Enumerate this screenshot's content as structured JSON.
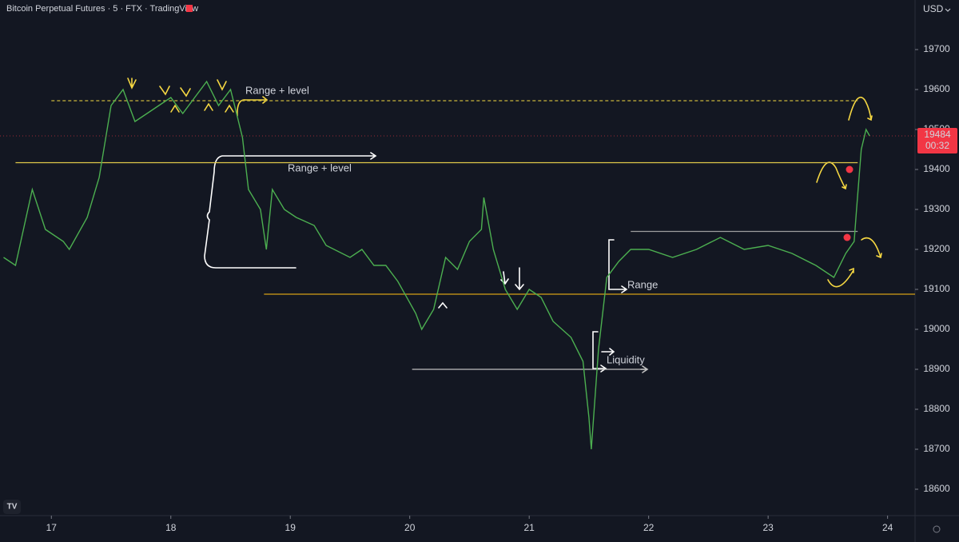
{
  "chart_data": {
    "type": "line",
    "title": "Bitcoin Perpetual Futures · 5 · FTX · TradingView",
    "currency": "USD",
    "color": "#4caf50",
    "x": [
      16.6,
      16.7,
      16.84,
      16.95,
      17.1,
      17.15,
      17.3,
      17.4,
      17.5,
      17.6,
      17.7,
      17.8,
      17.9,
      18.0,
      18.1,
      18.2,
      18.3,
      18.4,
      18.5,
      18.55,
      18.6,
      18.65,
      18.75,
      18.8,
      18.85,
      18.95,
      19.05,
      19.2,
      19.3,
      19.5,
      19.6,
      19.7,
      19.8,
      19.9,
      20.05,
      20.1,
      20.2,
      20.3,
      20.4,
      20.5,
      20.6,
      20.62,
      20.7,
      20.8,
      20.9,
      21.0,
      21.1,
      21.2,
      21.35,
      21.45,
      21.5,
      21.52,
      21.58,
      21.65,
      21.75,
      21.85,
      22.0,
      22.2,
      22.4,
      22.6,
      22.8,
      23.0,
      23.2,
      23.4,
      23.55,
      23.65,
      23.72,
      23.74,
      23.78,
      23.82,
      23.85
    ],
    "values": [
      19180,
      19160,
      19350,
      19250,
      19220,
      19200,
      19280,
      19380,
      19560,
      19600,
      19520,
      19540,
      19560,
      19580,
      19540,
      19580,
      19620,
      19560,
      19600,
      19540,
      19480,
      19350,
      19300,
      19200,
      19350,
      19300,
      19280,
      19260,
      19210,
      19180,
      19200,
      19160,
      19160,
      19120,
      19040,
      19000,
      19050,
      19180,
      19150,
      19220,
      19250,
      19330,
      19200,
      19100,
      19050,
      19100,
      19080,
      19020,
      18980,
      18920,
      18780,
      18700,
      18950,
      19130,
      19170,
      19200,
      19200,
      19180,
      19200,
      19230,
      19200,
      19210,
      19190,
      19160,
      19130,
      19190,
      19220,
      19300,
      19450,
      19500,
      19484
    ],
    "xlim": [
      16.57,
      24.23
    ],
    "ylim": [
      18534,
      19824
    ],
    "xticks": [
      17,
      18,
      19,
      20,
      21,
      22,
      23,
      24
    ],
    "yticks": [
      18600,
      18700,
      18800,
      18900,
      19000,
      19100,
      19200,
      19300,
      19400,
      19500,
      19600,
      19700
    ],
    "grid": false,
    "last_price": 19484,
    "countdown": "00:32",
    "levels": [
      {
        "value": 19572,
        "from": 17.0,
        "to": 23.75,
        "color": "#c8b43c",
        "dashed": true
      },
      {
        "value": 19417,
        "from": 16.7,
        "to": 23.75,
        "color": "#e0c84a",
        "dashed": false
      },
      {
        "value": 19245,
        "from": 21.85,
        "to": 23.75,
        "color": "#9e9e9e",
        "dashed": false
      },
      {
        "value": 19088,
        "from": 18.78,
        "to": 24.23,
        "color": "#d4a017",
        "dashed": false
      },
      {
        "value": 18900,
        "from": 20.02,
        "to": 21.98,
        "color": "#c0c0c0",
        "dashed": false
      }
    ],
    "annotations": [
      {
        "text": "Range + level",
        "color": "#f5d742"
      },
      {
        "text": "Range + level",
        "color": "#f5d742"
      },
      {
        "text": "Range",
        "color": "#ffffff"
      },
      {
        "text": "Liquidity",
        "color": "#ffffff"
      }
    ]
  }
}
